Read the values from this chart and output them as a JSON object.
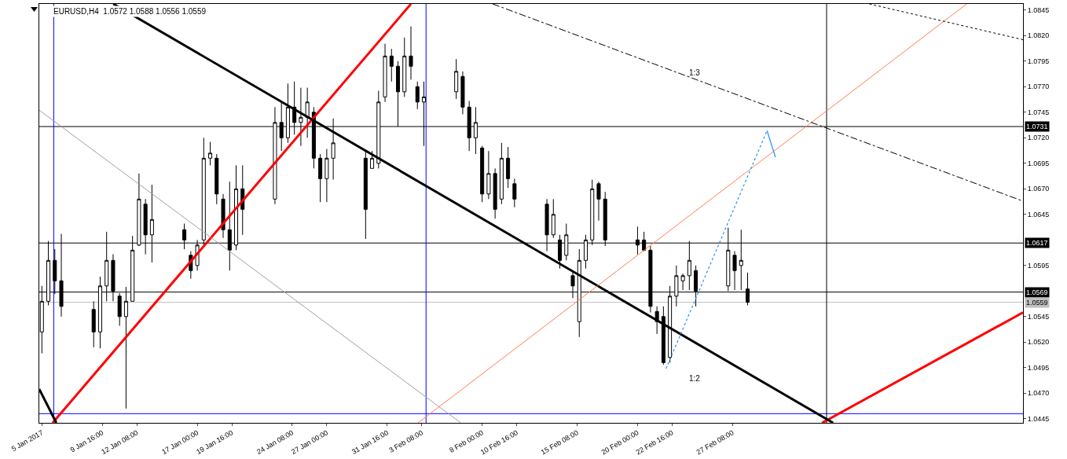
{
  "chart_data": {
    "type": "candlestick",
    "title": "EURUSD,H4  1.0572 1.0588 1.0556 1.0559",
    "xlim": [
      "2017-01-04T19:12",
      "2017-03-21T18:24"
    ],
    "xticks": [
      {
        "value": "2017-01-05",
        "label": "5 Jan 2017"
      },
      {
        "value": "2017-01-09T16:00",
        "label": "9 Jan 16:00"
      },
      {
        "value": "2017-01-12T08:00",
        "label": "12 Jan 08:00"
      },
      {
        "value": "2017-01-17",
        "label": "17 Jan 00:00"
      },
      {
        "value": "2017-01-19T16:00",
        "label": "19 Jan 16:00"
      },
      {
        "value": "2017-01-24T08:00",
        "label": "24 Jan 08:00"
      },
      {
        "value": "2017-01-27",
        "label": "27 Jan 00:00"
      },
      {
        "value": "2017-01-31T16:00",
        "label": "31 Jan 16:00"
      },
      {
        "value": "2017-02-03T08:00",
        "label": "3 Feb 08:00"
      },
      {
        "value": "2017-02-08",
        "label": "8 Feb 00:00"
      },
      {
        "value": "2017-02-10T16:00",
        "label": "10 Feb 16:00"
      },
      {
        "value": "2017-02-15T08:00",
        "label": "15 Feb 08:00"
      },
      {
        "value": "2017-02-20",
        "label": "20 Feb 00:00"
      },
      {
        "value": "2017-02-22T16:00",
        "label": "22 Feb 16:00"
      },
      {
        "value": "2017-02-27T08:00",
        "label": "27 Feb 08:00"
      }
    ],
    "ylim": [
      1.0441,
      1.0851
    ],
    "yticks": [
      1.0445,
      {
        "value": 1.047,
        "label": "1.0470"
      },
      1.0495,
      {
        "value": 1.052,
        "label": "1.0520"
      },
      1.0545,
      1.0595,
      1.0645,
      {
        "value": 1.067,
        "label": "1.0670"
      },
      1.0695,
      {
        "value": 1.072,
        "label": "1.0720"
      },
      1.0745,
      {
        "value": 1.077,
        "label": "1.0770"
      },
      1.0795,
      {
        "value": 1.082,
        "label": "1.0820"
      },
      1.0845
    ],
    "ref_lines": [
      {
        "axis": "y",
        "value": 1.0731,
        "label": "1.0731",
        "color": "#000000"
      },
      {
        "axis": "y",
        "value": 1.0617,
        "label": "1.0617",
        "color": "#000000"
      },
      {
        "axis": "y",
        "value": 1.0569,
        "label": "1.0569",
        "color": "#000000"
      },
      {
        "axis": "y",
        "value": 1.0559,
        "label": "1.0559",
        "color": "#c0c0c0"
      },
      {
        "axis": "y",
        "value": 1.045,
        "color": "#0000ff"
      },
      {
        "axis": "x",
        "value": "2017-01-05T22:00",
        "color": "#0000ff"
      },
      {
        "axis": "x",
        "value": "2017-02-03T16:00",
        "color": "#0000ff"
      },
      {
        "axis": "x",
        "value": "2017-03-06T14:24",
        "color": "#000000"
      }
    ],
    "annotations": [
      "1:3",
      "1:2"
    ],
    "series": [
      {
        "type": "line",
        "color": "#ff0000",
        "line_style": "solid",
        "x": [
          "2017-01-05T20:00",
          "2017-02-02T12:00"
        ],
        "values": [
          1.0441,
          1.0851
        ]
      },
      {
        "type": "line",
        "color": "#ff0000",
        "line_style": "solid",
        "x": [
          "2017-03-06T06:00",
          "2017-03-21T18:24"
        ],
        "values": [
          1.0441,
          1.0549
        ]
      },
      {
        "type": "line",
        "color": "#000000",
        "line_style": "solid",
        "x": [
          "2017-01-10T12:24",
          "2017-03-07T02:24"
        ],
        "values": [
          1.0851,
          1.0441
        ]
      },
      {
        "type": "line",
        "color": "#000000",
        "line_style": "solid",
        "x": [
          "2017-01-04T19:12",
          "2017-01-06T02:48"
        ],
        "values": [
          1.0474,
          1.0441
        ]
      },
      {
        "type": "line",
        "color": "#a0a0a0",
        "line_style": "solid",
        "x": [
          "2017-01-04T19:12",
          "2017-02-06T08:24"
        ],
        "values": [
          1.0747,
          1.0441
        ]
      },
      {
        "type": "line",
        "color": "#ff7f50",
        "line_style": "solid",
        "x": [
          "2017-02-03T01:12",
          "2017-03-17T10:00"
        ],
        "values": [
          1.0441,
          1.0851
        ]
      },
      {
        "type": "line",
        "color": "#000000",
        "line_style": "dashed",
        "x": [
          "2017-02-08T19:36",
          "2017-03-21T18:24"
        ],
        "values": [
          1.0851,
          1.0658
        ]
      },
      {
        "type": "line",
        "color": "#000000",
        "line_style": "dotted",
        "x": [
          "2017-03-09T21:36",
          "2017-03-21T18:24"
        ],
        "values": [
          1.0851,
          1.0816
        ]
      },
      {
        "type": "line",
        "color": "#1e90ff",
        "line_style": "dotted",
        "x": [
          "2017-02-22T04:48",
          "2017-03-02T00:00"
        ],
        "values": [
          1.0494,
          1.0727
        ]
      },
      {
        "type": "line",
        "color": "#1e90ff",
        "line_style": "solid",
        "x": [
          "2017-03-02T00:00",
          "2017-03-02T15:36"
        ],
        "values": [
          1.0727,
          1.0701
        ]
      },
      {
        "color": "#000000",
        "x": [
          "2017-01-05T00:00",
          "2017-01-05T12:00",
          "2017-01-06T00:00",
          "2017-01-06T12:00",
          "2017-01-09T00:00",
          "2017-01-09T12:00",
          "2017-01-10T00:00",
          "2017-01-10T12:00",
          "2017-01-11T00:00",
          "2017-01-11T12:00",
          "2017-01-12T00:00",
          "2017-01-12T12:00",
          "2017-01-13T00:00",
          "2017-01-13T12:00",
          "2017-01-16T00:00",
          "2017-01-16T12:00",
          "2017-01-17T00:00",
          "2017-01-17T12:00",
          "2017-01-18T00:00",
          "2017-01-18T12:00",
          "2017-01-19T00:00",
          "2017-01-19T12:00",
          "2017-01-20T00:00",
          "2017-01-20T12:00",
          "2017-01-23T00:00",
          "2017-01-23T12:00",
          "2017-01-24T00:00",
          "2017-01-24T12:00",
          "2017-01-25T00:00",
          "2017-01-25T12:00",
          "2017-01-26T00:00",
          "2017-01-26T12:00",
          "2017-01-27T00:00",
          "2017-01-27T12:00",
          "2017-01-30T00:00",
          "2017-01-30T12:00",
          "2017-01-31T00:00",
          "2017-01-31T12:00",
          "2017-02-01T00:00",
          "2017-02-01T12:00",
          "2017-02-02T00:00",
          "2017-02-02T12:00",
          "2017-02-03T00:00",
          "2017-02-03T12:00",
          "2017-02-06T00:00",
          "2017-02-06T12:00",
          "2017-02-07T00:00",
          "2017-02-07T12:00",
          "2017-02-08T00:00",
          "2017-02-08T12:00",
          "2017-02-09T00:00",
          "2017-02-09T12:00",
          "2017-02-10T00:00",
          "2017-02-10T12:00",
          "2017-02-13T00:00",
          "2017-02-13T12:00",
          "2017-02-14T00:00",
          "2017-02-14T12:00",
          "2017-02-15T00:00",
          "2017-02-15T12:00",
          "2017-02-16T00:00",
          "2017-02-16T12:00",
          "2017-02-17T00:00",
          "2017-02-17T12:00",
          "2017-02-20T00:00",
          "2017-02-20T12:00",
          "2017-02-21T00:00",
          "2017-02-21T12:00",
          "2017-02-22T00:00",
          "2017-02-22T12:00",
          "2017-02-23T00:00",
          "2017-02-23T12:00",
          "2017-02-24T00:00",
          "2017-02-24T12:00",
          "2017-02-27T00:00",
          "2017-02-27T12:00",
          "2017-02-28T00:00",
          "2017-02-28T12:00"
        ],
        "ohlc": [
          [
            1.053,
            1.0575,
            1.0509,
            1.056
          ],
          [
            1.056,
            1.0619,
            1.0556,
            1.06
          ],
          [
            1.06,
            1.0611,
            1.0567,
            1.058
          ],
          [
            1.058,
            1.0626,
            1.0545,
            1.0555
          ],
          [
            1.0552,
            1.056,
            1.0515,
            1.053
          ],
          [
            1.053,
            1.0584,
            1.0514,
            1.0575
          ],
          [
            1.0575,
            1.0628,
            1.056,
            1.06
          ],
          [
            1.06,
            1.0606,
            1.056,
            1.057
          ],
          [
            1.0565,
            1.0568,
            1.0536,
            1.0545
          ],
          [
            1.0545,
            1.0574,
            1.0455,
            1.056
          ],
          [
            1.056,
            1.0624,
            1.056,
            1.061
          ],
          [
            1.0615,
            1.0685,
            1.0614,
            1.066
          ],
          [
            1.0655,
            1.066,
            1.0606,
            1.0625
          ],
          [
            1.0625,
            1.0674,
            1.0598,
            1.064
          ],
          [
            1.063,
            1.0636,
            1.0611,
            1.062
          ],
          [
            1.0605,
            1.0609,
            1.0582,
            1.059
          ],
          [
            1.0595,
            1.062,
            1.059,
            1.0615
          ],
          [
            1.062,
            1.072,
            1.0615,
            1.07
          ],
          [
            1.07,
            1.0716,
            1.0693,
            1.0705
          ],
          [
            1.07,
            1.0704,
            1.0655,
            1.0665
          ],
          [
            1.066,
            1.0665,
            1.0622,
            1.063
          ],
          [
            1.063,
            1.0677,
            1.059,
            1.061
          ],
          [
            1.0615,
            1.0693,
            1.061,
            1.067
          ],
          [
            1.067,
            1.0693,
            1.0625,
            1.065
          ],
          [
            1.066,
            1.075,
            1.0655,
            1.0735
          ],
          [
            1.0735,
            1.0756,
            1.0707,
            1.072
          ],
          [
            1.072,
            1.0773,
            1.0715,
            1.075
          ],
          [
            1.075,
            1.0775,
            1.0723,
            1.0735
          ],
          [
            1.0735,
            1.0769,
            1.0712,
            1.074
          ],
          [
            1.074,
            1.0769,
            1.072,
            1.0755
          ],
          [
            1.0745,
            1.075,
            1.069,
            1.07
          ],
          [
            1.07,
            1.0704,
            1.0657,
            1.068
          ],
          [
            1.068,
            1.0709,
            1.0657,
            1.07
          ],
          [
            1.07,
            1.0739,
            1.0679,
            1.0715
          ],
          [
            1.07,
            1.0707,
            1.0621,
            1.065
          ],
          [
            1.069,
            1.0707,
            1.069,
            1.07
          ],
          [
            1.0695,
            1.0766,
            1.069,
            1.0755
          ],
          [
            1.076,
            1.0812,
            1.0755,
            1.08
          ],
          [
            1.08,
            1.0807,
            1.0775,
            1.079
          ],
          [
            1.079,
            1.0795,
            1.0731,
            1.0765
          ],
          [
            1.0765,
            1.0818,
            1.076,
            1.08
          ],
          [
            1.08,
            1.0829,
            1.0777,
            1.079
          ],
          [
            1.077,
            1.0775,
            1.0748,
            1.0755
          ],
          [
            1.0755,
            1.0775,
            1.0712,
            1.076
          ],
          [
            1.0765,
            1.0797,
            1.0758,
            1.0785
          ],
          [
            1.078,
            1.0785,
            1.0743,
            1.075
          ],
          [
            1.075,
            1.0756,
            1.0707,
            1.072
          ],
          [
            1.072,
            1.075,
            1.0704,
            1.0735
          ],
          [
            1.071,
            1.0712,
            1.0657,
            1.0665
          ],
          [
            1.0665,
            1.0707,
            1.066,
            1.0685
          ],
          [
            1.0685,
            1.069,
            1.0641,
            1.065
          ],
          [
            1.066,
            1.0715,
            1.0655,
            1.07
          ],
          [
            1.07,
            1.0711,
            1.0671,
            1.068
          ],
          [
            1.0675,
            1.068,
            1.0652,
            1.066
          ],
          [
            1.0655,
            1.066,
            1.0609,
            1.0625
          ],
          [
            1.0625,
            1.066,
            1.0622,
            1.0645
          ],
          [
            1.062,
            1.0625,
            1.0592,
            1.06
          ],
          [
            1.0605,
            1.0636,
            1.06,
            1.0625
          ],
          [
            1.0585,
            1.059,
            1.0563,
            1.0575
          ],
          [
            1.054,
            1.0611,
            1.0525,
            1.06
          ],
          [
            1.06,
            1.0625,
            1.0592,
            1.062
          ],
          [
            1.062,
            1.0679,
            1.0615,
            1.067
          ],
          [
            1.0675,
            1.0677,
            1.0639,
            1.066
          ],
          [
            1.066,
            1.0667,
            1.0614,
            1.062
          ],
          [
            1.062,
            1.0633,
            1.0606,
            1.0615
          ],
          [
            1.062,
            1.0628,
            1.0609,
            1.061
          ],
          [
            1.061,
            1.0614,
            1.0549,
            1.0555
          ],
          [
            1.055,
            1.0555,
            1.0528,
            1.054
          ],
          [
            1.0545,
            1.0555,
            1.0498,
            1.05
          ],
          [
            1.0505,
            1.0575,
            1.05,
            1.0565
          ],
          [
            1.0565,
            1.0595,
            1.0555,
            1.0585
          ],
          [
            1.058,
            1.0587,
            1.0571,
            1.0585
          ],
          [
            1.0585,
            1.0619,
            1.0571,
            1.06
          ],
          [
            1.059,
            1.0595,
            1.0555,
            1.057
          ],
          [
            1.0575,
            1.0632,
            1.057,
            1.061
          ],
          [
            1.0605,
            1.0609,
            1.0571,
            1.059
          ],
          [
            1.0595,
            1.063,
            1.0571,
            1.06
          ],
          [
            1.0572,
            1.0588,
            1.0556,
            1.0559
          ]
        ]
      }
    ]
  }
}
